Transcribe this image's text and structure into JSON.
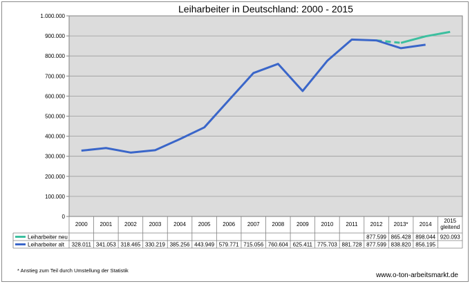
{
  "chart_data": {
    "type": "line",
    "title": "Leiharbeiter in Deutschland: 2000 - 2015",
    "categories": [
      "2000",
      "2001",
      "2002",
      "2003",
      "2004",
      "2005",
      "2006",
      "2007",
      "2008",
      "2009",
      "2010",
      "2011",
      "2012",
      "2013*",
      "2014",
      "2015\ngleitend"
    ],
    "ylim": [
      0,
      1000000
    ],
    "yticks": [
      "0",
      "100.000",
      "200.000",
      "300.000",
      "400.000",
      "500.000",
      "600.000",
      "700.000",
      "800.000",
      "900.000",
      "1.000.000"
    ],
    "grid": true,
    "series": [
      {
        "name": "Leiharbeiter neu",
        "color": "#3cbf9f",
        "values": [
          null,
          null,
          null,
          null,
          null,
          null,
          null,
          null,
          null,
          null,
          null,
          null,
          877599,
          865428,
          898044,
          920093
        ],
        "labels": [
          "",
          "",
          "",
          "",
          "",
          "",
          "",
          "",
          "",
          "",
          "",
          "",
          "877.599",
          "865.428",
          "898.044",
          "920.093"
        ]
      },
      {
        "name": "Leiharbeiter alt",
        "color": "#3a66c9",
        "values": [
          328011,
          341053,
          318465,
          330219,
          385256,
          443949,
          579771,
          715056,
          760604,
          625411,
          775703,
          881728,
          877599,
          838820,
          856195,
          null
        ],
        "labels": [
          "328.011",
          "341.053",
          "318.465",
          "330.219",
          "385.256",
          "443.949",
          "579.771",
          "715.056",
          "760.604",
          "625.411",
          "775.703",
          "881.728",
          "877.599",
          "838.820",
          "856.195",
          ""
        ]
      }
    ]
  },
  "footnote": "* Anstieg zum Teil durch Umstellung der Statistik",
  "source": "www.o-ton-arbeitsmarkt.de"
}
